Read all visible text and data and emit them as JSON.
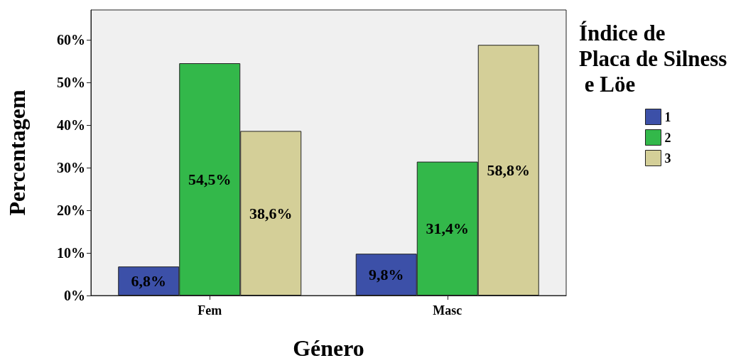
{
  "chart_data": {
    "type": "bar",
    "xlabel": "Género",
    "ylabel": "Percentagem",
    "legend_title": "Índice de Placa de Silness e Löe",
    "categories": [
      "Fem",
      "Masc"
    ],
    "series": [
      {
        "name": "1",
        "color": "#3c50a8",
        "values": [
          6.8,
          9.8
        ],
        "value_labels": [
          "6,8%",
          "9,8%"
        ]
      },
      {
        "name": "2",
        "color": "#33b84a",
        "values": [
          54.5,
          31.4
        ],
        "value_labels": [
          "54,5%",
          "31,4%"
        ]
      },
      {
        "name": "3",
        "color": "#d4cf98",
        "values": [
          38.6,
          58.8
        ],
        "value_labels": [
          "38,6%",
          "58,8%"
        ]
      }
    ],
    "ylim": [
      0,
      67
    ],
    "yticks": [
      {
        "value": 0,
        "label": "0%"
      },
      {
        "value": 10,
        "label": "10%"
      },
      {
        "value": 20,
        "label": "20%"
      },
      {
        "value": 30,
        "label": "30%"
      },
      {
        "value": 40,
        "label": "40%"
      },
      {
        "value": 50,
        "label": "50%"
      },
      {
        "value": 60,
        "label": "60%"
      }
    ],
    "grid": false,
    "legend": "top right"
  }
}
